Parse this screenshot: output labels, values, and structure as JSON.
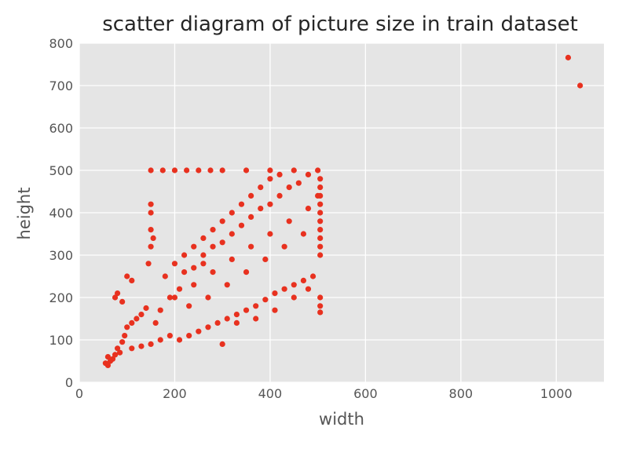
{
  "chart_data": {
    "type": "scatter",
    "title": "scatter diagram of picture size in train dataset",
    "xlabel": "width",
    "ylabel": "height",
    "xlim": [
      0,
      1100
    ],
    "ylim": [
      0,
      800
    ],
    "xticks": [
      0,
      200,
      400,
      600,
      800,
      1000
    ],
    "yticks": [
      0,
      100,
      200,
      300,
      400,
      500,
      600,
      700,
      800
    ],
    "grid": true,
    "point_color": "#e8311f",
    "background_color": "#e5e5e5",
    "grid_color": "#ffffff",
    "series": [
      {
        "points": [
          [
            1025,
            766
          ],
          [
            1050,
            700
          ],
          [
            150,
            500
          ],
          [
            175,
            500
          ],
          [
            200,
            500
          ],
          [
            225,
            500
          ],
          [
            250,
            500
          ],
          [
            275,
            500
          ],
          [
            300,
            500
          ],
          [
            350,
            500
          ],
          [
            400,
            500
          ],
          [
            450,
            500
          ],
          [
            500,
            500
          ],
          [
            150,
            420
          ],
          [
            150,
            400
          ],
          [
            150,
            360
          ],
          [
            150,
            320
          ],
          [
            155,
            340
          ],
          [
            145,
            280
          ],
          [
            80,
            210
          ],
          [
            75,
            200
          ],
          [
            90,
            190
          ],
          [
            100,
            250
          ],
          [
            110,
            240
          ],
          [
            60,
            60
          ],
          [
            55,
            45
          ],
          [
            60,
            40
          ],
          [
            65,
            50
          ],
          [
            70,
            55
          ],
          [
            75,
            65
          ],
          [
            80,
            80
          ],
          [
            85,
            70
          ],
          [
            90,
            95
          ],
          [
            95,
            110
          ],
          [
            100,
            130
          ],
          [
            110,
            140
          ],
          [
            120,
            150
          ],
          [
            130,
            160
          ],
          [
            140,
            175
          ],
          [
            110,
            80
          ],
          [
            130,
            85
          ],
          [
            150,
            90
          ],
          [
            170,
            100
          ],
          [
            190,
            110
          ],
          [
            210,
            100
          ],
          [
            230,
            110
          ],
          [
            250,
            120
          ],
          [
            270,
            130
          ],
          [
            290,
            140
          ],
          [
            300,
            90
          ],
          [
            310,
            150
          ],
          [
            330,
            160
          ],
          [
            350,
            170
          ],
          [
            370,
            180
          ],
          [
            390,
            195
          ],
          [
            410,
            210
          ],
          [
            430,
            220
          ],
          [
            450,
            230
          ],
          [
            470,
            240
          ],
          [
            490,
            250
          ],
          [
            505,
            200
          ],
          [
            505,
            180
          ],
          [
            505,
            165
          ],
          [
            180,
            250
          ],
          [
            200,
            280
          ],
          [
            220,
            300
          ],
          [
            240,
            320
          ],
          [
            260,
            340
          ],
          [
            280,
            360
          ],
          [
            300,
            380
          ],
          [
            320,
            400
          ],
          [
            340,
            420
          ],
          [
            360,
            440
          ],
          [
            380,
            460
          ],
          [
            400,
            480
          ],
          [
            420,
            490
          ],
          [
            200,
            200
          ],
          [
            240,
            230
          ],
          [
            280,
            260
          ],
          [
            320,
            290
          ],
          [
            360,
            320
          ],
          [
            400,
            350
          ],
          [
            440,
            380
          ],
          [
            480,
            410
          ],
          [
            500,
            440
          ],
          [
            230,
            180
          ],
          [
            270,
            200
          ],
          [
            310,
            230
          ],
          [
            350,
            260
          ],
          [
            390,
            290
          ],
          [
            430,
            320
          ],
          [
            470,
            350
          ],
          [
            505,
            380
          ],
          [
            505,
            300
          ],
          [
            505,
            320
          ],
          [
            505,
            340
          ],
          [
            505,
            360
          ],
          [
            505,
            400
          ],
          [
            505,
            420
          ],
          [
            505,
            440
          ],
          [
            505,
            460
          ],
          [
            505,
            480
          ],
          [
            330,
            140
          ],
          [
            370,
            150
          ],
          [
            410,
            170
          ],
          [
            450,
            200
          ],
          [
            480,
            220
          ],
          [
            160,
            140
          ],
          [
            170,
            170
          ],
          [
            190,
            200
          ],
          [
            210,
            220
          ],
          [
            220,
            260
          ],
          [
            240,
            270
          ],
          [
            260,
            280
          ],
          [
            260,
            300
          ],
          [
            280,
            320
          ],
          [
            300,
            330
          ],
          [
            320,
            350
          ],
          [
            340,
            370
          ],
          [
            360,
            390
          ],
          [
            380,
            410
          ],
          [
            400,
            420
          ],
          [
            420,
            440
          ],
          [
            440,
            460
          ],
          [
            460,
            470
          ],
          [
            480,
            490
          ]
        ]
      }
    ]
  }
}
